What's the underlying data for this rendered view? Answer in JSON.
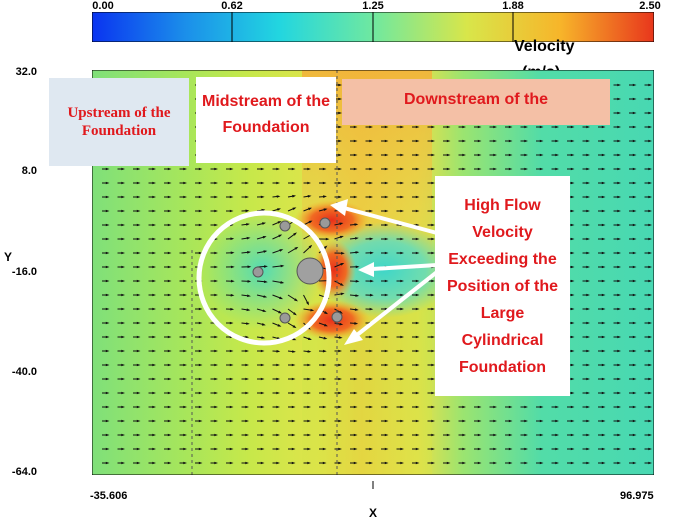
{
  "colors": {
    "scale": [
      "#0a34f0",
      "#1b8fea",
      "#22d6e0",
      "#6fe8a0",
      "#d8e64a",
      "#f7b52a",
      "#e8361c"
    ],
    "annotation_text": "#e0191d",
    "circle": "#ffffff",
    "arrow": "#ffffff"
  },
  "colorbar": {
    "ticks": [
      "0.00",
      "0.62",
      "1.25",
      "1.88",
      "2.50"
    ],
    "title": "Velocity",
    "unit": "(m/s)"
  },
  "regions": {
    "upstream": "Upstream of the Foundation",
    "midstream": "Midstream of the Foundation",
    "downstream": "Downstream of the"
  },
  "callout": "High Flow Velocity Exceeding the Position of the Large Cylindrical Foundation",
  "chart_data": {
    "type": "heatmap",
    "xlabel": "X",
    "ylabel": "Y",
    "xlim": [
      -35.606,
      96.975
    ],
    "ylim": [
      -64.0,
      32.0
    ],
    "x_ticks": [
      "-35.606",
      "96.975"
    ],
    "y_ticks": [
      "32.0",
      "8.0",
      "-16.0",
      "-40.0",
      "-64.0"
    ],
    "colorbar_range": [
      0.0,
      2.5
    ],
    "colorbar_label": "Velocity (m/s)",
    "field": "velocity magnitude with vector arrows",
    "background_level": 1.0,
    "velocity_bands": [
      {
        "x_range": [
          -35.606,
          -12
        ],
        "velocity": 1.0
      },
      {
        "x_range": [
          -12,
          5
        ],
        "velocity": 1.3
      },
      {
        "x_range": [
          5,
          25
        ],
        "velocity": 2.0
      },
      {
        "x_range": [
          25,
          40
        ],
        "velocity": 1.6
      },
      {
        "x_range": [
          40,
          96.975
        ],
        "velocity": 0.9
      }
    ],
    "foundation_center": [
      12,
      -16
    ],
    "high_velocity_zones": [
      {
        "x": 18,
        "y": -6,
        "velocity": 2.5
      },
      {
        "x": 18,
        "y": -26,
        "velocity": 2.5
      },
      {
        "x": 24,
        "y": -16,
        "velocity": 2.3
      }
    ],
    "guide_lines_x": [
      -17,
      26
    ]
  }
}
